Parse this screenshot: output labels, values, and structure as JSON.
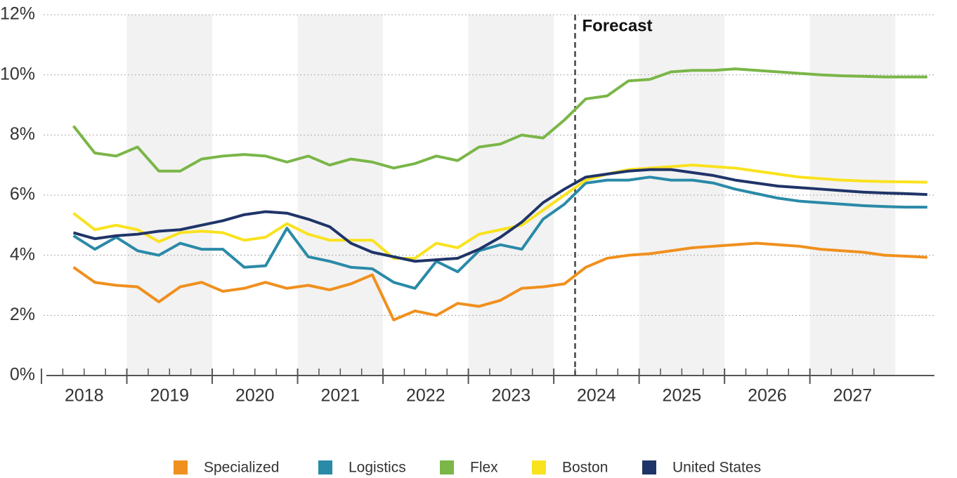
{
  "chart_data": {
    "type": "line",
    "annotation": "Forecast",
    "forecast_x": 2024.25,
    "x": [
      2018.375,
      2018.625,
      2018.875,
      2019.125,
      2019.375,
      2019.625,
      2019.875,
      2020.125,
      2020.375,
      2020.625,
      2020.875,
      2021.125,
      2021.375,
      2021.625,
      2021.875,
      2022.125,
      2022.375,
      2022.625,
      2022.875,
      2023.125,
      2023.375,
      2023.625,
      2023.875,
      2024.125,
      2024.375,
      2024.625,
      2024.875,
      2025.125,
      2025.375,
      2025.625,
      2025.875,
      2026.125,
      2026.375,
      2026.625,
      2026.875,
      2027.125,
      2027.375,
      2027.625,
      2027.875,
      2028.125,
      2028.375
    ],
    "series": [
      {
        "name": "Specialized",
        "color": "#f0901e",
        "values": [
          3.6,
          3.1,
          3.0,
          2.95,
          2.45,
          2.95,
          3.1,
          2.8,
          2.9,
          3.1,
          2.9,
          3.0,
          2.85,
          3.05,
          3.35,
          1.85,
          2.15,
          2.0,
          2.4,
          2.3,
          2.5,
          2.9,
          2.95,
          3.05,
          3.6,
          3.9,
          4.0,
          4.05,
          4.15,
          4.25,
          4.3,
          4.35,
          4.4,
          4.35,
          4.3,
          4.2,
          4.15,
          4.1,
          4.0,
          3.97,
          3.93
        ]
      },
      {
        "name": "Logistics",
        "color": "#2a8aa8",
        "values": [
          4.65,
          4.2,
          4.6,
          4.15,
          4.0,
          4.4,
          4.2,
          4.2,
          3.6,
          3.65,
          4.9,
          3.95,
          3.8,
          3.6,
          3.55,
          3.1,
          2.9,
          3.8,
          3.45,
          4.15,
          4.35,
          4.2,
          5.2,
          5.7,
          6.4,
          6.5,
          6.5,
          6.6,
          6.5,
          6.5,
          6.4,
          6.2,
          6.05,
          5.9,
          5.8,
          5.75,
          5.7,
          5.65,
          5.62,
          5.6,
          5.6
        ]
      },
      {
        "name": "Flex",
        "color": "#7ab648",
        "values": [
          8.3,
          7.4,
          7.3,
          7.6,
          6.8,
          6.8,
          7.2,
          7.3,
          7.35,
          7.3,
          7.1,
          7.3,
          7.0,
          7.2,
          7.1,
          6.9,
          7.05,
          7.3,
          7.15,
          7.6,
          7.7,
          8.0,
          7.9,
          8.5,
          9.2,
          9.3,
          9.8,
          9.85,
          10.1,
          10.15,
          10.15,
          10.2,
          10.15,
          10.1,
          10.05,
          10.0,
          9.97,
          9.95,
          9.93,
          9.93,
          9.93
        ]
      },
      {
        "name": "Boston",
        "color": "#f9e21e",
        "values": [
          5.4,
          4.85,
          5.0,
          4.85,
          4.45,
          4.75,
          4.8,
          4.75,
          4.5,
          4.6,
          5.05,
          4.7,
          4.5,
          4.5,
          4.5,
          3.9,
          3.9,
          4.4,
          4.25,
          4.7,
          4.85,
          5.0,
          5.5,
          6.0,
          6.5,
          6.7,
          6.85,
          6.9,
          6.95,
          7.0,
          6.95,
          6.9,
          6.8,
          6.7,
          6.6,
          6.55,
          6.5,
          6.47,
          6.45,
          6.44,
          6.43
        ]
      },
      {
        "name": "United States",
        "color": "#1f3468",
        "values": [
          4.75,
          4.55,
          4.65,
          4.7,
          4.8,
          4.85,
          5.0,
          5.15,
          5.35,
          5.45,
          5.4,
          5.2,
          4.95,
          4.4,
          4.1,
          3.95,
          3.8,
          3.85,
          3.9,
          4.2,
          4.6,
          5.1,
          5.75,
          6.2,
          6.6,
          6.7,
          6.8,
          6.85,
          6.85,
          6.75,
          6.65,
          6.5,
          6.4,
          6.3,
          6.25,
          6.2,
          6.15,
          6.1,
          6.07,
          6.05,
          6.02
        ]
      }
    ],
    "xlim": [
      2018,
      2028.55
    ],
    "xticks": [
      2018,
      2019,
      2020,
      2021,
      2022,
      2023,
      2024,
      2025,
      2026,
      2027
    ],
    "ylim": [
      0,
      12
    ],
    "yticks": [
      {
        "value": 0,
        "label": "0%"
      },
      {
        "value": 2,
        "label": "2%"
      },
      {
        "value": 4,
        "label": "4%"
      },
      {
        "value": 6,
        "label": "6%"
      },
      {
        "value": 8,
        "label": "8%"
      },
      {
        "value": 10,
        "label": "10%"
      },
      {
        "value": 12,
        "label": "12%"
      }
    ],
    "grid": true,
    "legend": "bottom"
  }
}
